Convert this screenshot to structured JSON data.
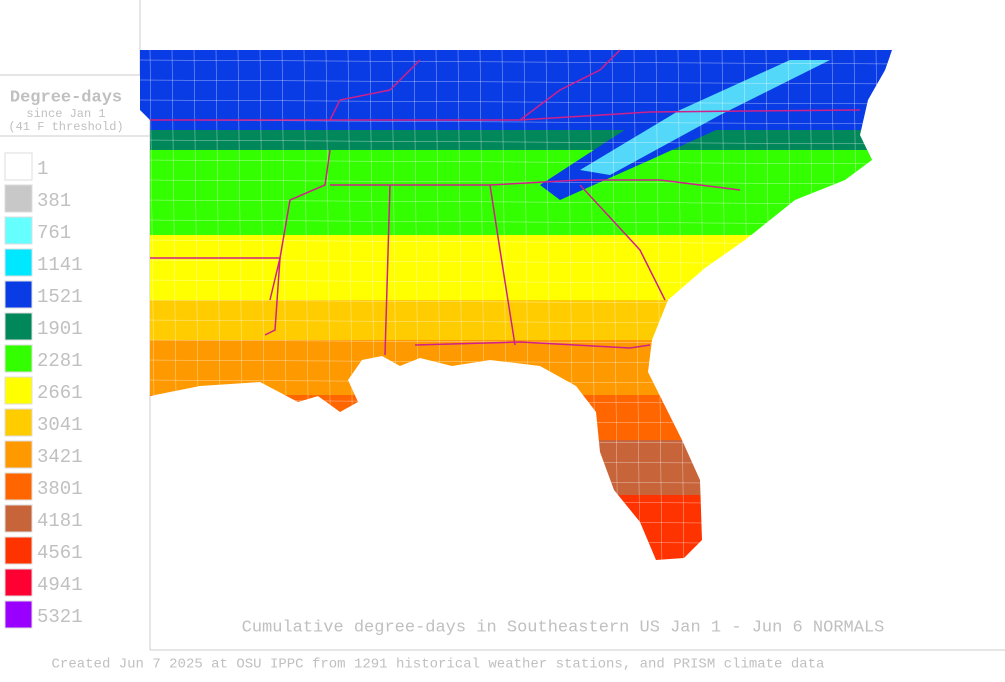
{
  "legend": {
    "title": "Degree-days",
    "subtitle": "since Jan 1",
    "threshold": "(41 F threshold)",
    "items": [
      {
        "value": 1,
        "color": "#ffffff"
      },
      {
        "value": 381,
        "color": "#c8c8c8"
      },
      {
        "value": 761,
        "color": "#66ffff"
      },
      {
        "value": 1141,
        "color": "#00e8ff"
      },
      {
        "value": 1521,
        "color": "#0a3ce6"
      },
      {
        "value": 1901,
        "color": "#00875a"
      },
      {
        "value": 2281,
        "color": "#33ff00"
      },
      {
        "value": 2661,
        "color": "#ffff00"
      },
      {
        "value": 3041,
        "color": "#ffcc00"
      },
      {
        "value": 3421,
        "color": "#ff9900"
      },
      {
        "value": 3801,
        "color": "#ff6600"
      },
      {
        "value": 4181,
        "color": "#c8643a"
      },
      {
        "value": 4561,
        "color": "#ff3300"
      },
      {
        "value": 4941,
        "color": "#ff0033"
      },
      {
        "value": 5321,
        "color": "#9900ff"
      }
    ]
  },
  "caption": "Cumulative degree-days in Southeastern US Jan 1 - Jun 6 NORMALS",
  "footer": "Created Jun 7 2025 at OSU IPPC from 1291 historical weather stations, and PRISM climate data"
}
